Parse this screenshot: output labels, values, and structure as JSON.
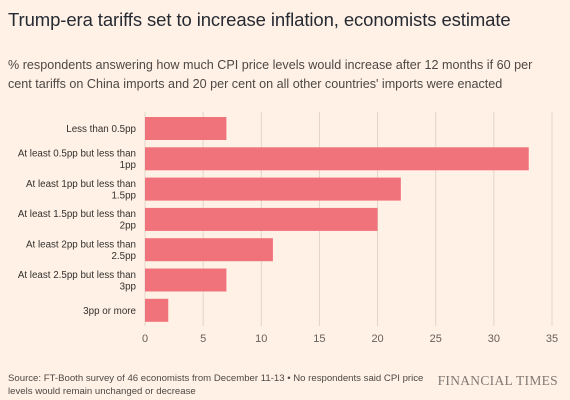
{
  "header": {
    "title": "Trump-era tariffs set to increase inflation, economists estimate",
    "subtitle": "% respondents answering how much CPI price levels would increase after 12 months if 60 per cent tariffs on China imports and 20 per cent on all other countries' imports were enacted"
  },
  "footer": {
    "source": "Source: FT-Booth survey of 46 economists from December 11-13 • No respondents said CPI price levels would remain unchanged or decrease",
    "brand": "FINANCIAL TIMES"
  },
  "colors": {
    "background": "#fff1e5",
    "bar": "#f0727a",
    "grid": "#e0d5c9"
  },
  "chart_data": {
    "type": "bar",
    "orientation": "horizontal",
    "categories": [
      [
        "Less than 0.5pp"
      ],
      [
        "At least 0.5pp but less than",
        "1pp"
      ],
      [
        "At least 1pp but less than",
        "1.5pp"
      ],
      [
        "At least 1.5pp but less than",
        "2pp"
      ],
      [
        "At least 2pp but less than",
        "2.5pp"
      ],
      [
        "At least 2.5pp but less than",
        "3pp"
      ],
      [
        "3pp or more"
      ]
    ],
    "values": [
      7,
      33,
      22,
      20,
      11,
      7,
      2
    ],
    "xlim": [
      0,
      35
    ],
    "xticks": [
      "0",
      "5",
      "10",
      "15",
      "20",
      "25",
      "30",
      "35"
    ],
    "grid": true
  }
}
